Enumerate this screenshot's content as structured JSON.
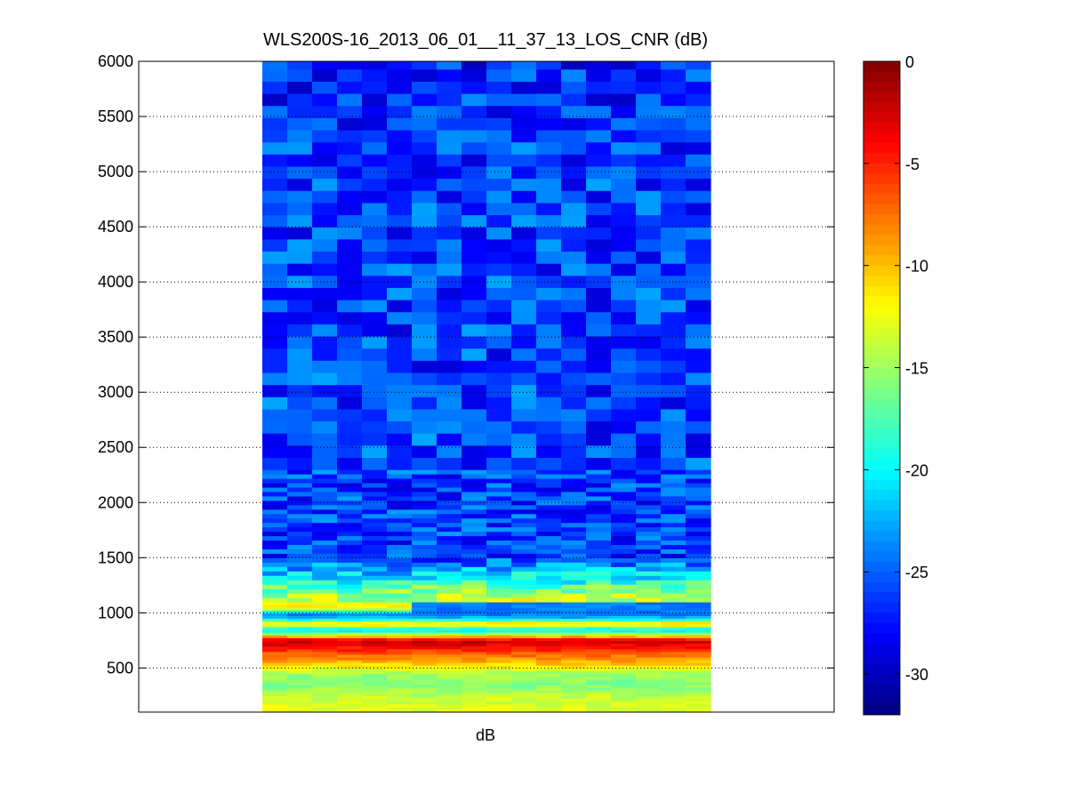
{
  "chart_data": {
    "type": "heatmap",
    "title": "WLS200S-16_2013_06_01__11_37_13_LOS_CNR (dB)",
    "xlabel": "dB",
    "ylabel": "",
    "ylim": [
      100,
      6000
    ],
    "yticks": [
      500,
      1000,
      1500,
      2000,
      2500,
      3000,
      3500,
      4000,
      4500,
      5000,
      5500,
      6000
    ],
    "grid": "horizontal dotted",
    "colormap": "jet",
    "colorbar": {
      "range": [
        -32,
        0
      ],
      "ticks": [
        0,
        -5,
        -10,
        -15,
        -20,
        -25,
        -30
      ]
    },
    "columns": 18,
    "cnr_profile_db": [
      {
        "range": 150,
        "value": -13
      },
      {
        "range": 250,
        "value": -14
      },
      {
        "range": 350,
        "value": -16
      },
      {
        "range": 450,
        "value": -15
      },
      {
        "range": 550,
        "value": -10
      },
      {
        "range": 650,
        "value": -6
      },
      {
        "range": 750,
        "value": -2
      },
      {
        "range": 800,
        "value": -12
      },
      {
        "range": 850,
        "value": -22
      },
      {
        "range": 900,
        "value": -9
      },
      {
        "range": 950,
        "value": -22
      },
      {
        "range": 1000,
        "value": -24
      },
      {
        "range": 1050,
        "value": -11
      },
      {
        "range": 1500,
        "value": -26
      },
      {
        "range": 2000,
        "value": -26
      },
      {
        "range": 3000,
        "value": -26
      },
      {
        "range": 4000,
        "value": -26
      },
      {
        "range": 5000,
        "value": -26
      },
      {
        "range": 6000,
        "value": -27
      }
    ]
  }
}
